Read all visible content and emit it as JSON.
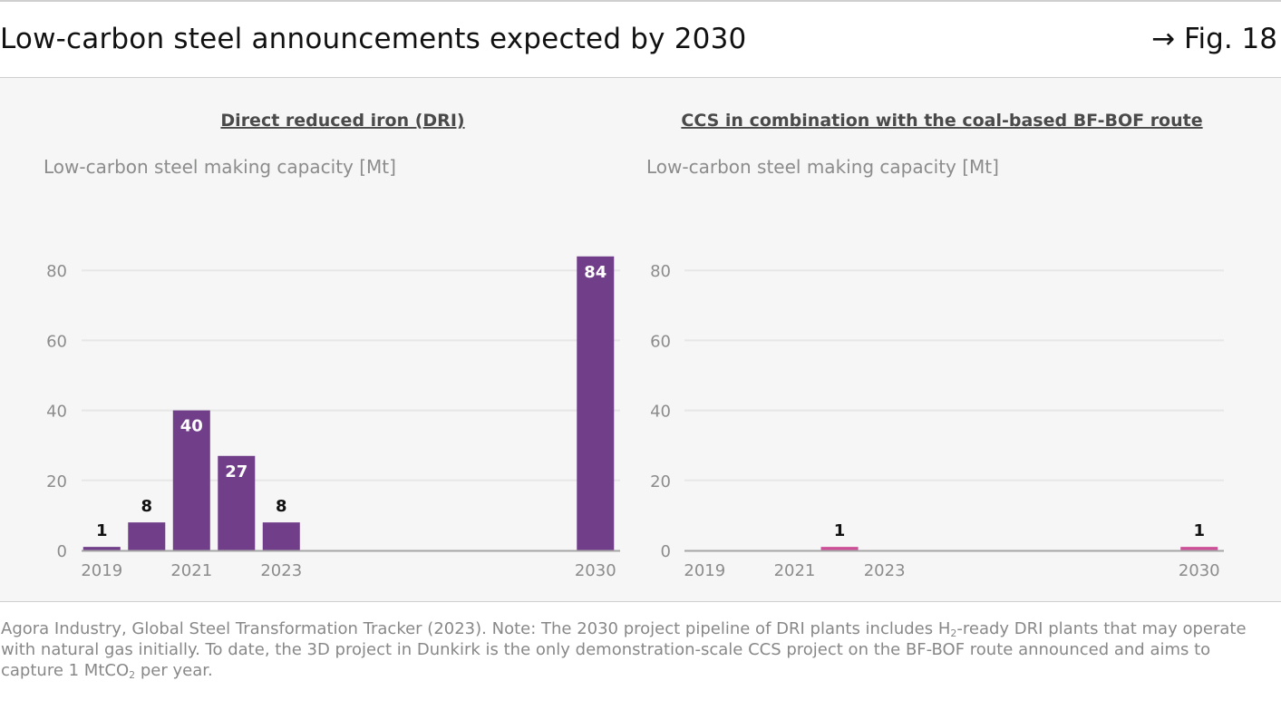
{
  "header": {
    "title": "Low-carbon steel announcements expected by 2030",
    "fig_ref": "→ Fig. 18"
  },
  "colors": {
    "dri_bar": "#713e8a",
    "ccs_bar": "#cc4f97",
    "gridline": "#e6e7e6",
    "baseline": "#a5a5a5",
    "tick_text": "#8c8c8c"
  },
  "chart_data": [
    {
      "type": "bar",
      "title": "Direct reduced iron (DRI)",
      "ylabel": "Low-carbon steel making capacity [Mt]",
      "xlabel": "",
      "x": [
        2019,
        2020,
        2021,
        2022,
        2023,
        2030
      ],
      "xticks": [
        "2019",
        "2021",
        "2023",
        "2030"
      ],
      "values": [
        1,
        8,
        40,
        27,
        8,
        84
      ],
      "yticks": [
        0,
        20,
        40,
        60,
        80
      ],
      "ylim": [
        0,
        88
      ],
      "grid": true,
      "color": "#713e8a"
    },
    {
      "type": "bar",
      "title": "CCS in combination with the coal-based BF-BOF route",
      "ylabel": "Low-carbon steel making capacity [Mt]",
      "xlabel": "",
      "x": [
        2022,
        2030
      ],
      "xticks": [
        "2019",
        "2021",
        "2023",
        "2030"
      ],
      "values": [
        1,
        1
      ],
      "yticks": [
        0,
        20,
        40,
        60,
        80
      ],
      "ylim": [
        0,
        88
      ],
      "grid": true,
      "color": "#cc4f97"
    }
  ],
  "footer": {
    "note_part1": "Agora Industry, Global Steel Transformation Tracker (2023). Note: The 2030 project pipeline of DRI plants includes H",
    "sub1": "2",
    "note_part2": "-ready DRI plants that may operate with natural gas initially. To date, the 3D project in Dunkirk is the only demonstration-scale CCS project on the BF-BOF route announced and aims to capture 1 MtCO",
    "sub2": "2",
    "note_part3": " per year."
  }
}
